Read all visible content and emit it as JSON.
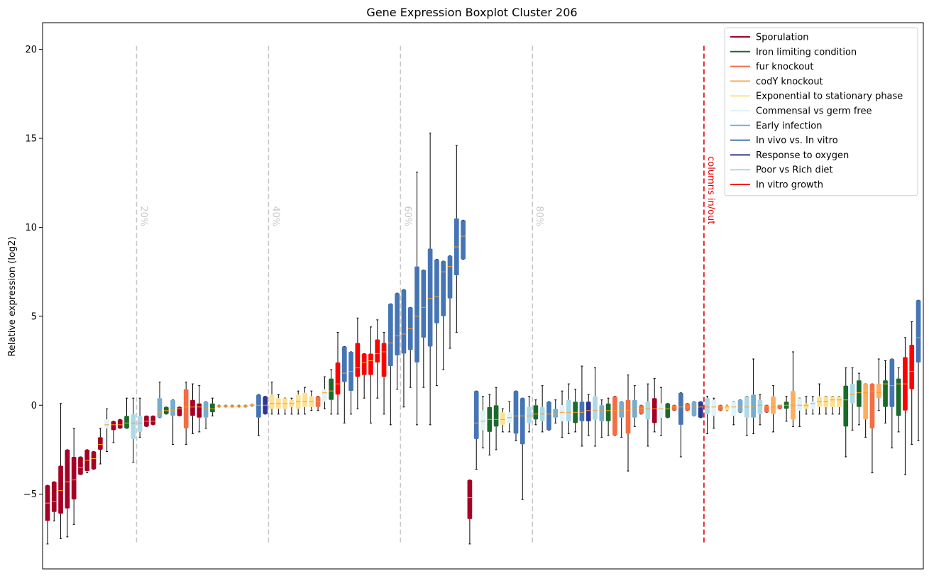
{
  "chart_data": {
    "type": "boxplot",
    "title": "Gene Expression Boxplot Cluster 206",
    "ylabel": "Relative expression (log2)",
    "xlabel": "",
    "ylim": [
      -9.2,
      21.5
    ],
    "yticks": [
      -5,
      0,
      5,
      10,
      15,
      20
    ],
    "ytick_labels": [
      "−5",
      "0",
      "5",
      "10",
      "15",
      "20"
    ],
    "legend_position": "top-right",
    "series": [
      {
        "name": "Sporulation",
        "color": "#a50026"
      },
      {
        "name": "Iron limiting condition",
        "color": "#1a6b2a"
      },
      {
        "name": "fur knockout",
        "color": "#f46d43"
      },
      {
        "name": "codY knockout",
        "color": "#fdae61"
      },
      {
        "name": "Exponential to stationary phase",
        "color": "#fee090"
      },
      {
        "name": "Commensal vs germ free",
        "color": "#e0f3f8"
      },
      {
        "name": "Early infection",
        "color": "#74add1"
      },
      {
        "name": "In vivo vs. In vitro",
        "color": "#4575b4"
      },
      {
        "name": "Response to oxygen",
        "color": "#313695"
      },
      {
        "name": "Poor vs Rich diet",
        "color": "#abd9e9"
      },
      {
        "name": "In vitro growth",
        "color": "#ff0000"
      }
    ],
    "percentile_lines": [
      {
        "label": "20%",
        "position": 14
      },
      {
        "label": "40%",
        "position": 34
      },
      {
        "label": "60%",
        "position": 54
      },
      {
        "label": "80%",
        "position": 74
      }
    ],
    "divider": {
      "label": "columns in/out",
      "position": 100
    },
    "boxes": [
      {
        "s": 0,
        "q1": -6.5,
        "med": -5.5,
        "q3": -4.5,
        "lo": -7.8,
        "hi": -4.5
      },
      {
        "s": 0,
        "q1": -6.0,
        "med": -5.4,
        "q3": -4.3,
        "lo": -6.5,
        "hi": -4.3
      },
      {
        "s": 0,
        "q1": -6.1,
        "med": -4.8,
        "q3": -3.4,
        "lo": -7.5,
        "hi": 0.1
      },
      {
        "s": 0,
        "q1": -5.8,
        "med": -4.3,
        "q3": -2.5,
        "lo": -7.4,
        "hi": -2.5
      },
      {
        "s": 0,
        "q1": -5.3,
        "med": -4.2,
        "q3": -2.9,
        "lo": -6.7,
        "hi": -1.3
      },
      {
        "s": 0,
        "q1": -3.9,
        "med": -3.5,
        "q3": -2.9,
        "lo": -3.9,
        "hi": -2.9
      },
      {
        "s": 0,
        "q1": -3.7,
        "med": -3.1,
        "q3": -2.5,
        "lo": -3.8,
        "hi": -2.5
      },
      {
        "s": 0,
        "q1": -3.6,
        "med": -3.0,
        "q3": -2.6,
        "lo": -3.6,
        "hi": -2.6
      },
      {
        "s": 0,
        "q1": -2.5,
        "med": -2.2,
        "q3": -1.8,
        "lo": -3.3,
        "hi": -1.3
      },
      {
        "s": 5,
        "q1": -1.3,
        "med": -1.1,
        "q3": -0.8,
        "lo": -2.6,
        "hi": -0.2
      },
      {
        "s": 0,
        "q1": -1.4,
        "med": -1.1,
        "q3": -0.9,
        "lo": -2.1,
        "hi": -0.9
      },
      {
        "s": 0,
        "q1": -1.3,
        "med": -1.1,
        "q3": -0.8,
        "lo": -1.3,
        "hi": -0.8
      },
      {
        "s": 1,
        "q1": -1.3,
        "med": -1.0,
        "q3": -0.6,
        "lo": -1.3,
        "hi": 0.4
      },
      {
        "s": 9,
        "q1": -1.9,
        "med": -1.0,
        "q3": -0.5,
        "lo": -3.2,
        "hi": 0.4
      },
      {
        "s": 9,
        "q1": -1.5,
        "med": -1.0,
        "q3": -0.6,
        "lo": -1.8,
        "hi": 0.4
      },
      {
        "s": 0,
        "q1": -1.2,
        "med": -0.9,
        "q3": -0.6,
        "lo": -1.2,
        "hi": -0.6
      },
      {
        "s": 0,
        "q1": -1.1,
        "med": -0.9,
        "q3": -0.6,
        "lo": -1.1,
        "hi": -0.6
      },
      {
        "s": 6,
        "q1": -0.7,
        "med": -0.4,
        "q3": 0.4,
        "lo": -0.7,
        "hi": 1.3
      },
      {
        "s": 1,
        "q1": -0.5,
        "med": -0.3,
        "q3": -0.1,
        "lo": -0.5,
        "hi": -0.1
      },
      {
        "s": 6,
        "q1": -0.6,
        "med": -0.3,
        "q3": 0.3,
        "lo": -2.2,
        "hi": 0.3
      },
      {
        "s": 0,
        "q1": -0.6,
        "med": -0.2,
        "q3": -0.1,
        "lo": -0.6,
        "hi": -0.1
      },
      {
        "s": 2,
        "q1": -1.3,
        "med": -0.1,
        "q3": 0.9,
        "lo": -2.2,
        "hi": 1.3
      },
      {
        "s": 0,
        "q1": -0.6,
        "med": -0.1,
        "q3": 0.3,
        "lo": -1.6,
        "hi": 1.2
      },
      {
        "s": 0,
        "q1": -0.7,
        "med": -0.1,
        "q3": 0.1,
        "lo": -1.5,
        "hi": 1.1
      },
      {
        "s": 6,
        "q1": -0.7,
        "med": -0.2,
        "q3": 0.2,
        "lo": -1.3,
        "hi": 0.2
      },
      {
        "s": 1,
        "q1": -0.4,
        "med": -0.2,
        "q3": 0.1,
        "lo": -0.6,
        "hi": 0.4
      },
      {
        "s": 3,
        "q1": -0.1,
        "med": -0.05,
        "q3": 0.0,
        "lo": -0.1,
        "hi": 0.0
      },
      {
        "s": 3,
        "q1": -0.1,
        "med": -0.05,
        "q3": 0.0,
        "lo": -0.1,
        "hi": 0.0
      },
      {
        "s": 3,
        "q1": -0.1,
        "med": -0.05,
        "q3": 0.0,
        "lo": -0.1,
        "hi": 0.0
      },
      {
        "s": 3,
        "q1": -0.1,
        "med": -0.05,
        "q3": 0.0,
        "lo": -0.1,
        "hi": 0.0
      },
      {
        "s": 3,
        "q1": -0.1,
        "med": -0.05,
        "q3": 0.0,
        "lo": -0.1,
        "hi": 0.0
      },
      {
        "s": 3,
        "q1": -0.05,
        "med": 0.0,
        "q3": 0.05,
        "lo": -0.05,
        "hi": 0.05
      },
      {
        "s": 7,
        "q1": -0.7,
        "med": 0.0,
        "q3": 0.6,
        "lo": -1.7,
        "hi": 0.6
      },
      {
        "s": 8,
        "q1": -0.5,
        "med": 0.0,
        "q3": 0.5,
        "lo": -0.5,
        "hi": 0.5
      },
      {
        "s": 4,
        "q1": -0.2,
        "med": 0.1,
        "q3": 0.6,
        "lo": -0.5,
        "hi": 1.3
      },
      {
        "s": 4,
        "q1": -0.2,
        "med": 0.1,
        "q3": 0.4,
        "lo": -0.5,
        "hi": 0.6
      },
      {
        "s": 4,
        "q1": -0.2,
        "med": 0.1,
        "q3": 0.4,
        "lo": -0.5,
        "hi": 0.4
      },
      {
        "s": 4,
        "q1": -0.1,
        "med": 0.1,
        "q3": 0.3,
        "lo": -0.5,
        "hi": 0.4
      },
      {
        "s": 4,
        "q1": -0.2,
        "med": 0.2,
        "q3": 0.6,
        "lo": -0.5,
        "hi": 0.8
      },
      {
        "s": 4,
        "q1": -0.1,
        "med": 0.2,
        "q3": 0.7,
        "lo": -0.5,
        "hi": 1.0
      },
      {
        "s": 4,
        "q1": -0.1,
        "med": 0.2,
        "q3": 0.5,
        "lo": -0.3,
        "hi": 0.8
      },
      {
        "s": 2,
        "q1": -0.1,
        "med": 0.2,
        "q3": 0.5,
        "lo": -0.3,
        "hi": 0.5
      },
      {
        "s": 5,
        "q1": 0.2,
        "med": 0.7,
        "q3": 0.9,
        "lo": -0.2,
        "hi": 1.6
      },
      {
        "s": 1,
        "q1": 0.3,
        "med": 0.8,
        "q3": 1.5,
        "lo": -0.5,
        "hi": 2.0
      },
      {
        "s": 10,
        "q1": 0.6,
        "med": 1.2,
        "q3": 2.4,
        "lo": -0.5,
        "hi": 4.1
      },
      {
        "s": 7,
        "q1": 1.3,
        "med": 1.8,
        "q3": 3.3,
        "lo": -1.0,
        "hi": 3.3
      },
      {
        "s": 7,
        "q1": 0.8,
        "med": 1.9,
        "q3": 3.0,
        "lo": -0.5,
        "hi": 3.0
      },
      {
        "s": 10,
        "q1": 1.6,
        "med": 2.1,
        "q3": 3.5,
        "lo": -0.2,
        "hi": 4.9
      },
      {
        "s": 10,
        "q1": 1.7,
        "med": 2.4,
        "q3": 2.9,
        "lo": 0.4,
        "hi": 2.9
      },
      {
        "s": 10,
        "q1": 1.7,
        "med": 2.5,
        "q3": 2.9,
        "lo": -1.0,
        "hi": 4.4
      },
      {
        "s": 10,
        "q1": 2.4,
        "med": 2.9,
        "q3": 3.7,
        "lo": 0.4,
        "hi": 4.8
      },
      {
        "s": 10,
        "q1": 1.6,
        "med": 3.0,
        "q3": 3.5,
        "lo": -0.5,
        "hi": 4.1
      },
      {
        "s": 7,
        "q1": 2.2,
        "med": 3.5,
        "q3": 5.7,
        "lo": -1.1,
        "hi": 5.7
      },
      {
        "s": 7,
        "q1": 2.8,
        "med": 3.9,
        "q3": 6.3,
        "lo": 0.9,
        "hi": 6.3
      },
      {
        "s": 7,
        "q1": 2.9,
        "med": 4.0,
        "q3": 6.5,
        "lo": -0.1,
        "hi": 6.5
      },
      {
        "s": 7,
        "q1": 3.1,
        "med": 4.3,
        "q3": 5.5,
        "lo": 1.0,
        "hi": 5.5
      },
      {
        "s": 7,
        "q1": 2.4,
        "med": 5.0,
        "q3": 7.8,
        "lo": -1.1,
        "hi": 13.1
      },
      {
        "s": 7,
        "q1": 3.8,
        "med": 5.5,
        "q3": 7.6,
        "lo": 1.0,
        "hi": 7.6
      },
      {
        "s": 7,
        "q1": 3.3,
        "med": 6.0,
        "q3": 8.8,
        "lo": -1.1,
        "hi": 15.3
      },
      {
        "s": 7,
        "q1": 4.6,
        "med": 6.1,
        "q3": 8.2,
        "lo": 1.1,
        "hi": 8.2
      },
      {
        "s": 7,
        "q1": 5.0,
        "med": 7.5,
        "q3": 8.1,
        "lo": 2.0,
        "hi": 8.1
      },
      {
        "s": 7,
        "q1": 6.0,
        "med": 7.8,
        "q3": 8.4,
        "lo": 3.2,
        "hi": 8.4
      },
      {
        "s": 7,
        "q1": 7.3,
        "med": 8.9,
        "q3": 10.5,
        "lo": 4.1,
        "hi": 14.6
      },
      {
        "s": 7,
        "q1": 8.2,
        "med": 9.5,
        "q3": 10.4,
        "lo": 8.2,
        "hi": 10.4
      },
      {
        "s": 0,
        "q1": -6.4,
        "med": -5.2,
        "q3": -4.2,
        "lo": -7.8,
        "hi": -4.2
      },
      {
        "s": 7,
        "q1": -1.9,
        "med": -1.0,
        "q3": 0.8,
        "lo": -3.6,
        "hi": 0.8
      },
      {
        "s": 5,
        "q1": -1.4,
        "med": -0.9,
        "q3": -0.3,
        "lo": -2.4,
        "hi": 0.5
      },
      {
        "s": 1,
        "q1": -1.5,
        "med": -0.8,
        "q3": -0.1,
        "lo": -2.8,
        "hi": 0.6
      },
      {
        "s": 1,
        "q1": -1.2,
        "med": -0.8,
        "q3": 0.0,
        "lo": -2.5,
        "hi": 1.0
      },
      {
        "s": 4,
        "q1": -1.1,
        "med": -0.8,
        "q3": -0.4,
        "lo": -1.5,
        "hi": -0.2
      },
      {
        "s": 5,
        "q1": -1.0,
        "med": -0.7,
        "q3": -0.4,
        "lo": -1.5,
        "hi": 0.2
      },
      {
        "s": 7,
        "q1": -1.6,
        "med": -0.6,
        "q3": 0.8,
        "lo": -2.0,
        "hi": 0.8
      },
      {
        "s": 7,
        "q1": -2.2,
        "med": -0.6,
        "q3": 0.4,
        "lo": -5.3,
        "hi": 0.4
      },
      {
        "s": 9,
        "q1": -1.0,
        "med": -0.6,
        "q3": -0.1,
        "lo": -1.5,
        "hi": 0.5
      },
      {
        "s": 1,
        "q1": -0.8,
        "med": -0.5,
        "q3": 0.0,
        "lo": -1.1,
        "hi": 0.3
      },
      {
        "s": 9,
        "q1": -0.9,
        "med": -0.5,
        "q3": -0.1,
        "lo": -1.5,
        "hi": 1.1
      },
      {
        "s": 7,
        "q1": -1.4,
        "med": -0.5,
        "q3": 0.2,
        "lo": -1.4,
        "hi": 0.2
      },
      {
        "s": 6,
        "q1": -0.7,
        "med": -0.5,
        "q3": -0.2,
        "lo": -1.0,
        "hi": 0.3
      },
      {
        "s": 5,
        "q1": -0.9,
        "med": -0.4,
        "q3": 0.0,
        "lo": -1.8,
        "hi": 0.8
      },
      {
        "s": 9,
        "q1": -0.9,
        "med": -0.4,
        "q3": 0.3,
        "lo": -1.6,
        "hi": 1.2
      },
      {
        "s": 1,
        "q1": -1.0,
        "med": -0.4,
        "q3": 0.2,
        "lo": -1.5,
        "hi": 0.9
      },
      {
        "s": 7,
        "q1": -0.9,
        "med": -0.4,
        "q3": 0.2,
        "lo": -2.3,
        "hi": 2.2
      },
      {
        "s": 8,
        "q1": -0.9,
        "med": -0.3,
        "q3": 0.2,
        "lo": -1.7,
        "hi": 0.6
      },
      {
        "s": 9,
        "q1": -0.8,
        "med": -0.3,
        "q3": 0.5,
        "lo": -2.3,
        "hi": 2.1
      },
      {
        "s": 6,
        "q1": -0.9,
        "med": -0.3,
        "q3": 0.0,
        "lo": -1.8,
        "hi": 0.3
      },
      {
        "s": 1,
        "q1": -0.9,
        "med": -0.3,
        "q3": 0.1,
        "lo": -1.7,
        "hi": 0.4
      },
      {
        "s": 2,
        "q1": -1.7,
        "med": -0.3,
        "q3": 0.5,
        "lo": -1.7,
        "hi": 0.5
      },
      {
        "s": 6,
        "q1": -0.7,
        "med": -0.3,
        "q3": 0.2,
        "lo": -1.8,
        "hi": 0.2
      },
      {
        "s": 2,
        "q1": -1.6,
        "med": -0.3,
        "q3": 0.3,
        "lo": -3.7,
        "hi": 1.7
      },
      {
        "s": 6,
        "q1": -0.7,
        "med": -0.2,
        "q3": 0.3,
        "lo": -1.2,
        "hi": 1.1
      },
      {
        "s": 2,
        "q1": -0.5,
        "med": -0.2,
        "q3": 0.0,
        "lo": -0.5,
        "hi": 0.0
      },
      {
        "s": 9,
        "q1": -0.8,
        "med": -0.2,
        "q3": 0.2,
        "lo": -2.3,
        "hi": 1.2
      },
      {
        "s": 0,
        "q1": -1.0,
        "med": -0.2,
        "q3": 0.4,
        "lo": -1.5,
        "hi": 1.5
      },
      {
        "s": 5,
        "q1": -0.7,
        "med": -0.2,
        "q3": 0.1,
        "lo": -1.7,
        "hi": 1.0
      },
      {
        "s": 1,
        "q1": -0.7,
        "med": -0.2,
        "q3": 0.1,
        "lo": -0.7,
        "hi": 0.1
      },
      {
        "s": 2,
        "q1": -0.3,
        "med": -0.1,
        "q3": 0.0,
        "lo": -0.3,
        "hi": 0.0
      },
      {
        "s": 7,
        "q1": -1.1,
        "med": -0.1,
        "q3": 0.7,
        "lo": -2.9,
        "hi": 0.7
      },
      {
        "s": 2,
        "q1": -0.3,
        "med": -0.1,
        "q3": 0.1,
        "lo": -0.3,
        "hi": 0.1
      },
      {
        "s": 6,
        "q1": -0.6,
        "med": -0.1,
        "q3": 0.2,
        "lo": -0.6,
        "hi": 0.2
      },
      {
        "s": 8,
        "q1": -0.7,
        "med": -0.1,
        "q3": 0.2,
        "lo": -0.7,
        "hi": 0.2
      },
      {
        "s": 9,
        "q1": -0.5,
        "med": -0.1,
        "q3": 0.4,
        "lo": -1.6,
        "hi": 0.5
      },
      {
        "s": 5,
        "q1": -0.6,
        "med": -0.1,
        "q3": 0.3,
        "lo": -1.3,
        "hi": 0.4
      },
      {
        "s": 2,
        "q1": -0.3,
        "med": -0.1,
        "q3": 0.0,
        "lo": -0.3,
        "hi": 0.0
      },
      {
        "s": 4,
        "q1": -0.3,
        "med": -0.1,
        "q3": 0.0,
        "lo": -0.3,
        "hi": 0.0
      },
      {
        "s": 5,
        "q1": -0.6,
        "med": -0.1,
        "q3": 0.2,
        "lo": -1.1,
        "hi": 0.2
      },
      {
        "s": 6,
        "q1": -0.4,
        "med": -0.1,
        "q3": 0.3,
        "lo": -0.4,
        "hi": 0.3
      },
      {
        "s": 9,
        "q1": -0.7,
        "med": -0.1,
        "q3": 0.5,
        "lo": -1.7,
        "hi": 0.5
      },
      {
        "s": 6,
        "q1": -0.7,
        "med": -0.1,
        "q3": 0.6,
        "lo": -1.6,
        "hi": 2.6
      },
      {
        "s": 9,
        "q1": -0.5,
        "med": 0.0,
        "q3": 0.3,
        "lo": -1.1,
        "hi": 0.6
      },
      {
        "s": 2,
        "q1": -0.4,
        "med": -0.1,
        "q3": 0.0,
        "lo": -0.4,
        "hi": 0.0
      },
      {
        "s": 3,
        "q1": -0.5,
        "med": -0.1,
        "q3": 0.5,
        "lo": -1.5,
        "hi": 1.1
      },
      {
        "s": 2,
        "q1": -0.2,
        "med": 0.0,
        "q3": 0.0,
        "lo": -0.2,
        "hi": 0.0
      },
      {
        "s": 1,
        "q1": -0.2,
        "med": 0.0,
        "q3": 0.2,
        "lo": -0.9,
        "hi": 0.5
      },
      {
        "s": 3,
        "q1": -0.8,
        "med": 0.0,
        "q3": 0.8,
        "lo": -1.2,
        "hi": 3.0
      },
      {
        "s": 5,
        "q1": -0.3,
        "med": 0.0,
        "q3": 0.4,
        "lo": -1.2,
        "hi": 0.4
      },
      {
        "s": 4,
        "q1": -0.2,
        "med": 0.0,
        "q3": 0.1,
        "lo": -0.5,
        "hi": 0.5
      },
      {
        "s": 5,
        "q1": -0.2,
        "med": 0.1,
        "q3": 0.2,
        "lo": -0.5,
        "hi": 0.5
      },
      {
        "s": 4,
        "q1": -0.1,
        "med": 0.2,
        "q3": 0.5,
        "lo": -0.5,
        "hi": 1.2
      },
      {
        "s": 4,
        "q1": -0.1,
        "med": 0.2,
        "q3": 0.5,
        "lo": -0.5,
        "hi": 0.5
      },
      {
        "s": 4,
        "q1": -0.1,
        "med": 0.3,
        "q3": 0.5,
        "lo": -0.5,
        "hi": 0.5
      },
      {
        "s": 4,
        "q1": -0.1,
        "med": 0.3,
        "q3": 0.5,
        "lo": -0.5,
        "hi": 0.5
      },
      {
        "s": 1,
        "q1": -1.2,
        "med": 0.3,
        "q3": 1.1,
        "lo": -2.9,
        "hi": 2.1
      },
      {
        "s": 9,
        "q1": 0.1,
        "med": 0.6,
        "q3": 1.2,
        "lo": -1.4,
        "hi": 2.1
      },
      {
        "s": 1,
        "q1": -0.1,
        "med": 0.7,
        "q3": 1.4,
        "lo": -1.1,
        "hi": 1.8
      },
      {
        "s": 3,
        "q1": -0.8,
        "med": 0.7,
        "q3": 1.2,
        "lo": -1.8,
        "hi": 1.2
      },
      {
        "s": 2,
        "q1": -1.3,
        "med": 0.8,
        "q3": 1.2,
        "lo": -3.8,
        "hi": 1.2
      },
      {
        "s": 3,
        "q1": 0.4,
        "med": 0.7,
        "q3": 1.2,
        "lo": -0.3,
        "hi": 2.6
      },
      {
        "s": 1,
        "q1": -0.1,
        "med": 1.2,
        "q3": 1.4,
        "lo": -1.0,
        "hi": 2.5
      },
      {
        "s": 7,
        "q1": -0.1,
        "med": 1.1,
        "q3": 2.6,
        "lo": -2.4,
        "hi": 2.6
      },
      {
        "s": 1,
        "q1": -0.6,
        "med": 1.2,
        "q3": 1.5,
        "lo": -1.5,
        "hi": 2.1
      },
      {
        "s": 10,
        "q1": -0.3,
        "med": 1.2,
        "q3": 2.7,
        "lo": -3.9,
        "hi": 3.8
      },
      {
        "s": 10,
        "q1": 0.9,
        "med": 1.9,
        "q3": 3.4,
        "lo": -2.2,
        "hi": 4.7
      },
      {
        "s": 7,
        "q1": 2.4,
        "med": 3.8,
        "q3": 5.9,
        "lo": -2.0,
        "hi": 5.9
      }
    ]
  }
}
